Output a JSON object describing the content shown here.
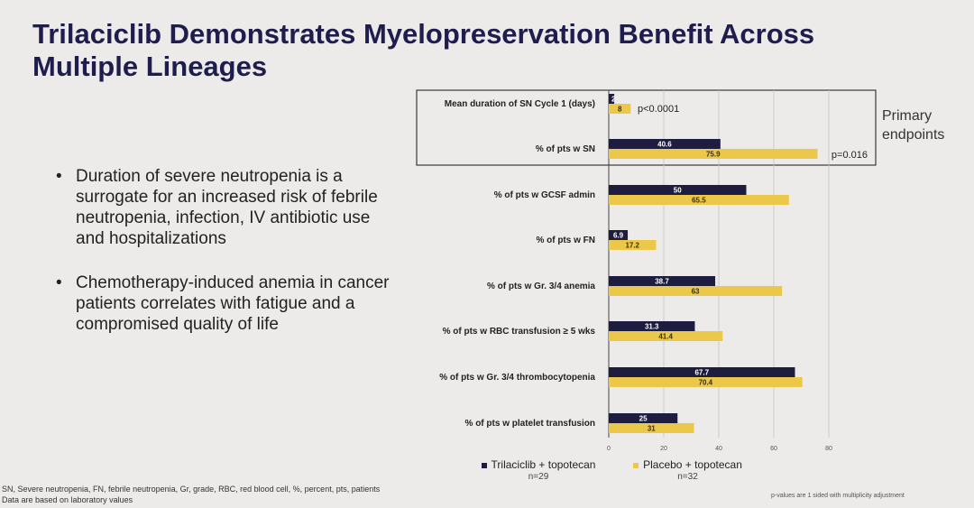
{
  "slide": {
    "title_line1": "Trilaciclib Demonstrates Myelopreservation Benefit Across",
    "title_line2": "Multiple Lineages",
    "bullets": [
      "Duration of severe neutropenia is a surrogate for an increased risk of febrile neutropenia, infection, IV antibiotic use and hospitalizations",
      "Chemotherapy-induced anemia in cancer patients correlates with fatigue and a compromised quality of life"
    ],
    "bullet_symbol": "•",
    "primary_label_line1": "Primary",
    "primary_label_line2": "endpoints",
    "footnote_line1": "SN, Severe neutropenia, FN, febrile neutropenia, Gr, grade, RBC, red blood cell, %, percent, pts, patients",
    "footnote_line2": "Data are based on laboratory values",
    "pvalue_note": "p-values are 1 sided with multiplicity adjustment",
    "legend": {
      "trila_label": "Trilaciclib + topotecan",
      "trila_n": "n=29",
      "placebo_label": "Placebo + topotecan",
      "placebo_n": "n=32"
    },
    "colors": {
      "trilaciclib": "#1f1d3f",
      "placebo": "#ecc84a",
      "title": "#1f1d4d"
    }
  },
  "chart_data": {
    "type": "bar",
    "orientation": "horizontal",
    "categories": [
      "Mean duration of SN Cycle 1 (days)",
      "% of pts w SN",
      "% of pts w GCSF admin",
      "% of pts w FN",
      "% of pts w Gr. 3/4 anemia",
      "% of pts w RBC transfusion ≥ 5 wks",
      "% of pts w Gr. 3/4 thrombocytopenia",
      "% of pts w platelet transfusion"
    ],
    "series": [
      {
        "name": "Trilaciclib + topotecan",
        "values": [
          2,
          40.6,
          50,
          6.9,
          38.7,
          31.3,
          67.7,
          25
        ],
        "labels": [
          "2",
          "40.6",
          "50",
          "6.9",
          "38.7",
          "31.3",
          "67.7",
          "25"
        ]
      },
      {
        "name": "Placebo + topotecan",
        "values": [
          8,
          75.9,
          65.5,
          17.2,
          63,
          41.4,
          70.4,
          31
        ],
        "labels": [
          "8",
          "75.9",
          "65.5",
          "17.2",
          "63",
          "41.4",
          "70.4",
          "31"
        ]
      }
    ],
    "pvalues": [
      {
        "category_index": 0,
        "text": "p<0.0001"
      },
      {
        "category_index": 1,
        "text": "p=0.016"
      }
    ],
    "xticks": [
      0,
      20,
      40,
      60,
      80
    ],
    "xlim": [
      0,
      80
    ],
    "grid": true,
    "legend_position": "bottom"
  }
}
